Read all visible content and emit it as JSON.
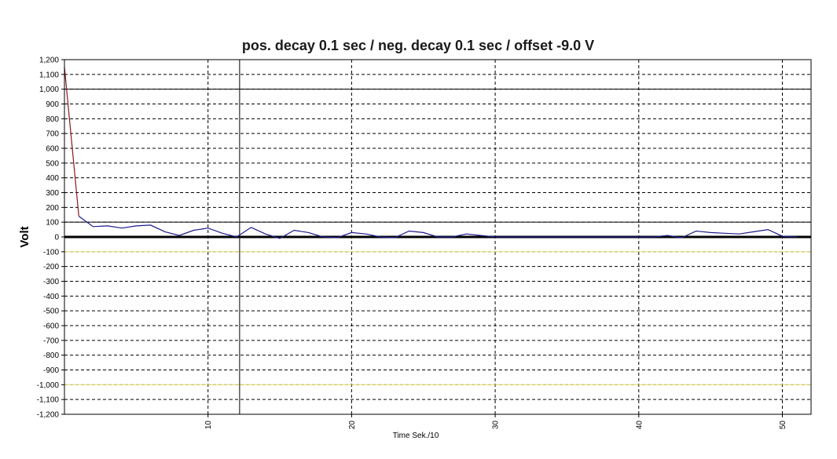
{
  "chart_data": {
    "type": "line",
    "title": "pos. decay 0.1 sec / neg. decay 0.1 sec / offset -9.0 V",
    "xlabel": "Time Sek./10",
    "ylabel": "Volt",
    "xlim": [
      0,
      52
    ],
    "ylim": [
      -1200,
      1200
    ],
    "grid": true,
    "x_ticks": [
      10,
      20,
      30,
      40,
      50
    ],
    "x_tick_labels": [
      "10",
      "20",
      "30",
      "40",
      "50"
    ],
    "y_ticks": [
      1200,
      1100,
      1000,
      900,
      800,
      700,
      600,
      500,
      400,
      300,
      200,
      100,
      0,
      -100,
      -200,
      -300,
      -400,
      -500,
      -600,
      -700,
      -800,
      -900,
      -1000,
      -1100,
      -1200
    ],
    "y_tick_labels": [
      "1,200",
      "1,100",
      "1,000",
      "900",
      "800",
      "700",
      "600",
      "500",
      "400",
      "300",
      "200",
      "100",
      "0",
      "-100",
      "-200",
      "-300",
      "-400",
      "-500",
      "-600",
      "-700",
      "-800",
      "-900",
      "-1,000",
      "-1,100",
      "-1,200"
    ],
    "reference_lines": [
      {
        "orientation": "horizontal",
        "value": 1000,
        "color": "#000000"
      },
      {
        "orientation": "horizontal",
        "value": 100,
        "color": "#000000"
      },
      {
        "orientation": "horizontal",
        "value": 0,
        "color": "#000000"
      },
      {
        "orientation": "horizontal",
        "value": -100,
        "color": "#e8e070"
      },
      {
        "orientation": "horizontal",
        "value": -1000,
        "color": "#e8e070"
      },
      {
        "orientation": "vertical",
        "value": 12.2,
        "color": "#000000"
      }
    ],
    "series": [
      {
        "color": "#8b1a1a",
        "x": [
          0,
          1
        ],
        "y": [
          1150,
          140
        ]
      },
      {
        "color": "#1a1a8b",
        "x": [
          1,
          2,
          3,
          4,
          5,
          6,
          7,
          8,
          9,
          10,
          11,
          12,
          13,
          14,
          15,
          16,
          17,
          18,
          19,
          20,
          21,
          22,
          23,
          24,
          25,
          26,
          27,
          28,
          29,
          30,
          31,
          32,
          33,
          34,
          35,
          36,
          37,
          38,
          39,
          40,
          41,
          42,
          43,
          44,
          45,
          46,
          47,
          48,
          49,
          50,
          51
        ],
        "y": [
          140,
          70,
          75,
          60,
          75,
          80,
          35,
          10,
          45,
          60,
          25,
          0,
          65,
          20,
          -10,
          45,
          30,
          0,
          -5,
          30,
          20,
          0,
          -5,
          40,
          30,
          0,
          0,
          20,
          10,
          0,
          0,
          0,
          0,
          0,
          0,
          0,
          0,
          0,
          0,
          0,
          0,
          10,
          -5,
          40,
          30,
          25,
          20,
          35,
          50,
          5,
          0
        ]
      }
    ]
  }
}
